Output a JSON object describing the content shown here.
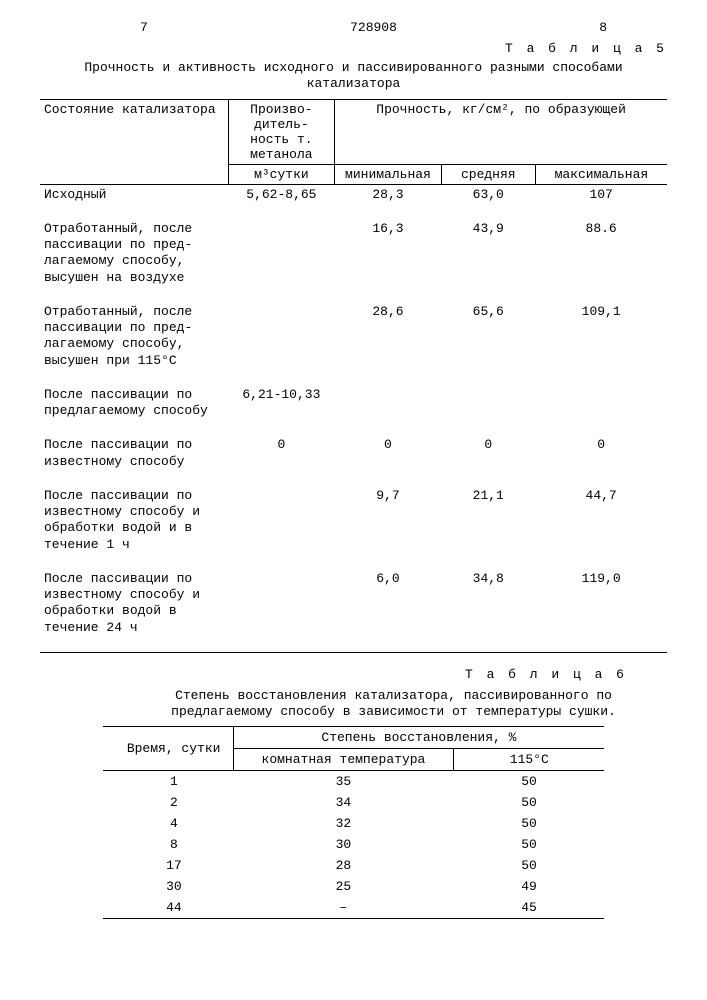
{
  "header": {
    "page_left": "7",
    "docnum": "728908",
    "page_right": "8"
  },
  "table5": {
    "label": "Т а б л и ц а 5",
    "caption": "Прочность и активность исходного и пассивированного разными способами катализатора",
    "h_state": "Состояние катализатора",
    "h_prod1": "Произво-",
    "h_prod2": "дитель-",
    "h_prod3": "ность т.",
    "h_prod4": "метанола",
    "h_unit": "м³сутки",
    "h_strength": "Прочность, кг/см², по образующей",
    "h_min": "минимальная",
    "h_avg": "средняя",
    "h_max": "максимальная",
    "rows": [
      {
        "label": "Исходный",
        "v1": "5,62-8,65",
        "v2": "28,3",
        "v3": "63,0",
        "v4": "107"
      },
      {
        "label": "Отработанный, после пассивации по пред­лагаемому способу, высушен на возду­хе",
        "v1": "",
        "v2": "16,3",
        "v3": "43,9",
        "v4": "88.6"
      },
      {
        "label": "Отработанный, после пассивации по пред­лагаемому способу, высушен при 115°С",
        "v1": "",
        "v2": "28,6",
        "v3": "65,6",
        "v4": "109,1"
      },
      {
        "label": "После пассивации по предлагаемому спо­собу",
        "v1": "6,21-10,33",
        "v2": "",
        "v3": "",
        "v4": ""
      },
      {
        "label": "После пассивации по известному спосо­бу",
        "v1": "0",
        "v2": "0",
        "v3": "0",
        "v4": "0"
      },
      {
        "label": "После пассивации по известному способу и обработки водой и в течение 1 ч",
        "v1": "",
        "v2": "9,7",
        "v3": "21,1",
        "v4": "44,7"
      },
      {
        "label": "После пассивации по известному способу и обработки водой в течение 24 ч",
        "v1": "",
        "v2": "6,0",
        "v3": "34,8",
        "v4": "119,0"
      }
    ]
  },
  "table6": {
    "label": "Т а б л и ц а 6",
    "caption": "Степень восстановления катализатора, пассиви­рованного по предлагаемому способу в зави­симости от температуры сушки.",
    "h_time": "Время, сутки",
    "h_deg": "Степень восстановления, %",
    "h_room": "комнатная температура",
    "h_115": "115°С",
    "rows": [
      {
        "t": "1",
        "r": "35",
        "c": "50"
      },
      {
        "t": "2",
        "r": "34",
        "c": "50"
      },
      {
        "t": "4",
        "r": "32",
        "c": "50"
      },
      {
        "t": "8",
        "r": "30",
        "c": "50"
      },
      {
        "t": "17",
        "r": "28",
        "c": "50"
      },
      {
        "t": "30",
        "r": "25",
        "c": "49"
      },
      {
        "t": "44",
        "r": "–",
        "c": "45"
      }
    ]
  }
}
